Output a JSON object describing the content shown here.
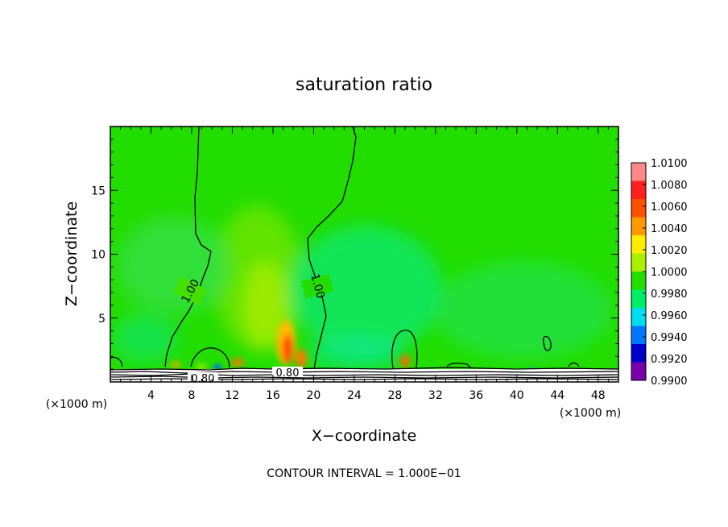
{
  "chart_data": {
    "type": "heatmap",
    "title": "saturation ratio",
    "xlabel": "X−coordinate",
    "ylabel": "Z−coordinate",
    "x_unit": "(×1000 m)",
    "footer": "CONTOUR INTERVAL = 1.000E−01",
    "xlim": [
      0,
      50
    ],
    "ylim": [
      0,
      20
    ],
    "x_ticks": [
      4,
      8,
      12,
      16,
      20,
      24,
      28,
      32,
      36,
      40,
      44,
      48
    ],
    "y_ticks": [
      5,
      10,
      15
    ],
    "contour_labels": [
      "1.00",
      "1.00",
      "0.80",
      "0.80"
    ],
    "colorbar": {
      "labels": [
        "1.0100",
        "1.0080",
        "1.0060",
        "1.0040",
        "1.0020",
        "1.0000",
        "0.9980",
        "0.9960",
        "0.9940",
        "0.9920",
        "0.9900"
      ],
      "colors": [
        "#ff8888",
        "#ff2020",
        "#ff5000",
        "#ff9900",
        "#ffee00",
        "#aaee00",
        "#22dd00",
        "#00ee66",
        "#00ddee",
        "#0077ff",
        "#0000cc",
        "#7700aa"
      ]
    }
  }
}
